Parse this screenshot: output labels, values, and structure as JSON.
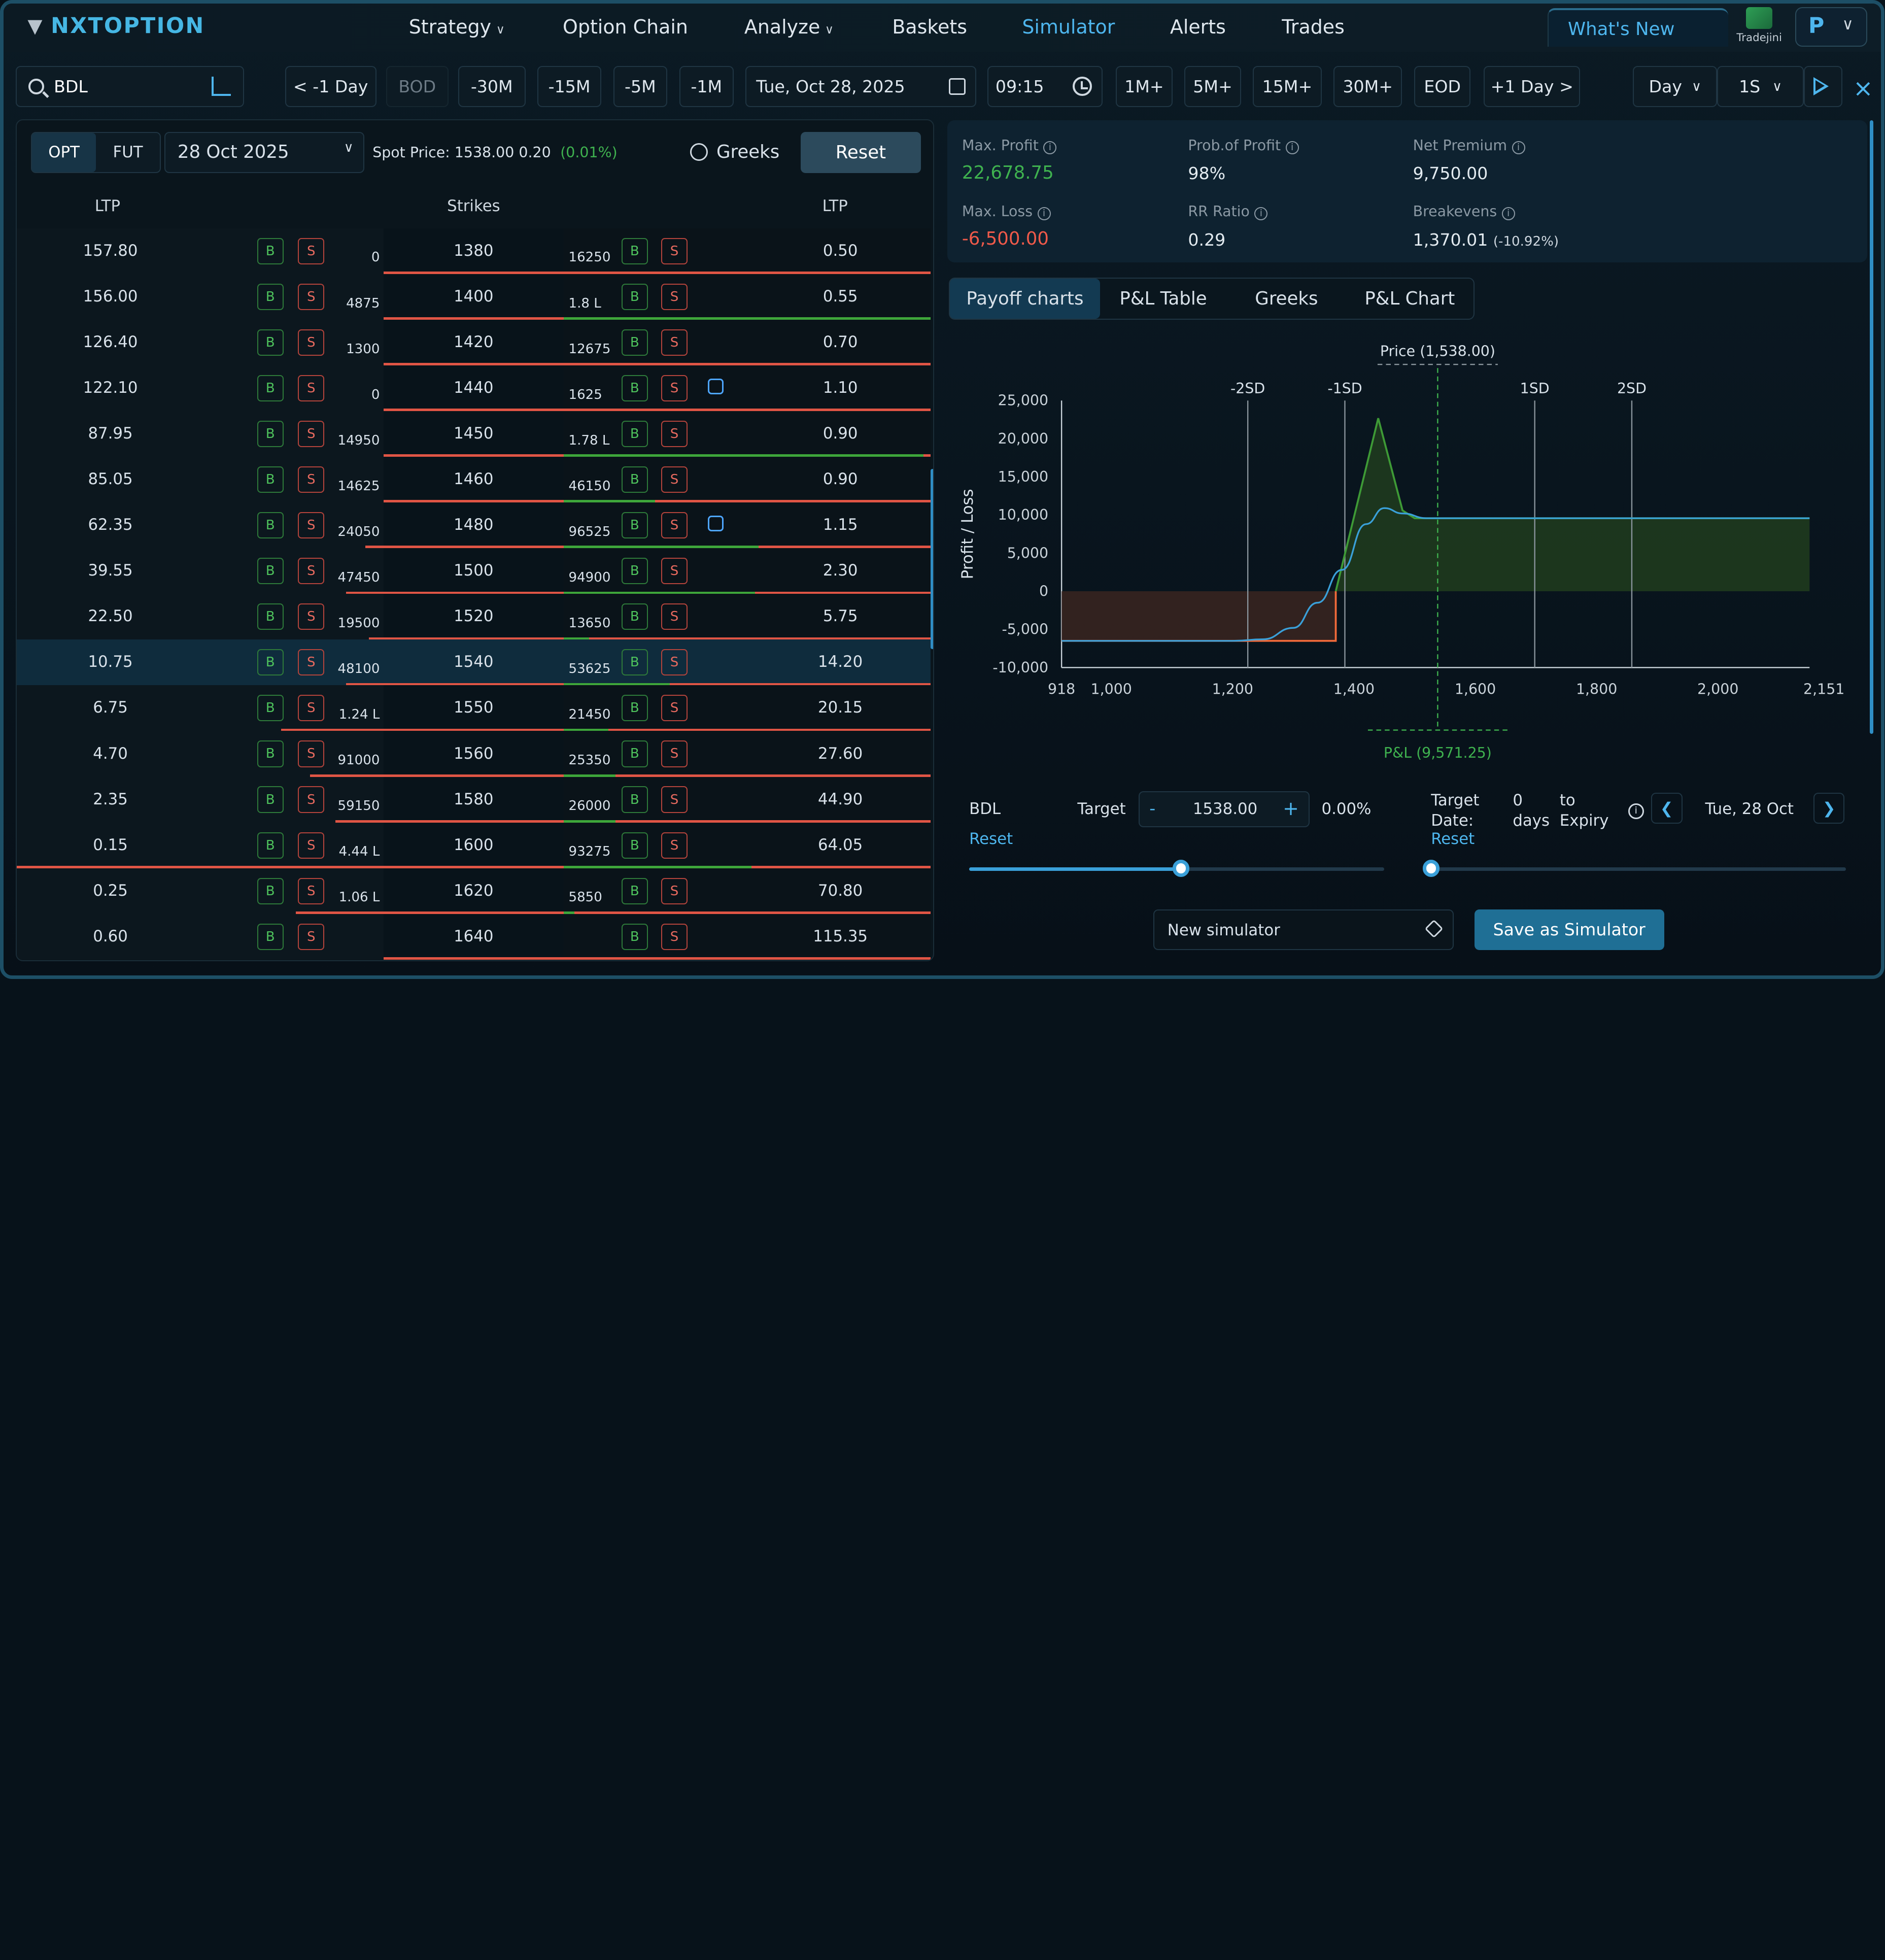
{
  "header": {
    "brand": "NXTOPTION",
    "nav": [
      {
        "label": "Strategy",
        "dropdown": true
      },
      {
        "label": "Option Chain",
        "dropdown": false
      },
      {
        "label": "Analyze",
        "dropdown": true
      },
      {
        "label": "Baskets",
        "dropdown": false
      },
      {
        "label": "Simulator",
        "dropdown": false,
        "active": true
      },
      {
        "label": "Alerts",
        "dropdown": false
      },
      {
        "label": "Trades",
        "dropdown": false
      }
    ],
    "whats_new": "What's New",
    "broker": "Tradejini",
    "profile_initial": "P"
  },
  "toolbar": {
    "symbol": "BDL",
    "back_day": "< -1 Day",
    "bod": "BOD",
    "m30": "-30M",
    "m15": "-15M",
    "m5": "-5M",
    "m1": "-1M",
    "date": "Tue, Oct 28, 2025",
    "time": "09:15",
    "p1": "1M+",
    "p5": "5M+",
    "p15": "15M+",
    "p30": "30M+",
    "eod": "EOD",
    "fwd_day": "+1 Day >",
    "interval": "Day",
    "speed": "1S"
  },
  "chain": {
    "opt": "OPT",
    "fut": "FUT",
    "expiry": "28 Oct 2025",
    "spot_label": "Spot Price: 1538.00",
    "spot_change": "0.20",
    "spot_pct": "(0.01%)",
    "greeks": "Greeks",
    "reset": "Reset",
    "col_ltp_left": "LTP",
    "col_strikes": "Strikes",
    "col_ltp_right": "LTP",
    "rows": [
      {
        "ce_ltp": "157.80",
        "ce_oi": "0",
        "strike": "1380",
        "pe_oi": "16250",
        "pe_ltp": "0.50",
        "ce_bar": 0,
        "pe_bar": 0
      },
      {
        "ce_ltp": "156.00",
        "ce_oi": "4875",
        "strike": "1400",
        "pe_oi": "1.8 L",
        "pe_ltp": "0.55",
        "ce_bar": 0,
        "pe_bar": 1.0
      },
      {
        "ce_ltp": "126.40",
        "ce_oi": "1300",
        "strike": "1420",
        "pe_oi": "12675",
        "pe_ltp": "0.70",
        "ce_bar": 0,
        "pe_bar": 0
      },
      {
        "ce_ltp": "122.10",
        "ce_oi": "0",
        "strike": "1440",
        "pe_oi": "1625",
        "pe_ltp": "1.10",
        "ce_bar": 0,
        "pe_bar": 0,
        "bag": true
      },
      {
        "ce_ltp": "87.95",
        "ce_oi": "14950",
        "strike": "1450",
        "pe_oi": "1.78 L",
        "pe_ltp": "0.90",
        "ce_bar": 0,
        "pe_bar": 0.98
      },
      {
        "ce_ltp": "85.05",
        "ce_oi": "14625",
        "strike": "1460",
        "pe_oi": "46150",
        "pe_ltp": "0.90",
        "ce_bar": 0,
        "pe_bar": 0.25
      },
      {
        "ce_ltp": "62.35",
        "ce_oi": "24050",
        "strike": "1480",
        "pe_oi": "96525",
        "pe_ltp": "1.15",
        "ce_bar": 0.05,
        "pe_bar": 0.53,
        "bag": true
      },
      {
        "ce_ltp": "39.55",
        "ce_oi": "47450",
        "strike": "1500",
        "pe_oi": "94900",
        "pe_ltp": "2.30",
        "ce_bar": 0.1,
        "pe_bar": 0.52
      },
      {
        "ce_ltp": "22.50",
        "ce_oi": "19500",
        "strike": "1520",
        "pe_oi": "13650",
        "pe_ltp": "5.75",
        "ce_bar": 0.04,
        "pe_bar": 0.07
      },
      {
        "ce_ltp": "10.75",
        "ce_oi": "48100",
        "strike": "1540",
        "pe_oi": "53625",
        "pe_ltp": "14.20",
        "ce_bar": 0.1,
        "pe_bar": 0.29,
        "highlight": true
      },
      {
        "ce_ltp": "6.75",
        "ce_oi": "1.24 L",
        "strike": "1550",
        "pe_oi": "21450",
        "pe_ltp": "20.15",
        "ce_bar": 0.28,
        "pe_bar": 0.12
      },
      {
        "ce_ltp": "4.70",
        "ce_oi": "91000",
        "strike": "1560",
        "pe_oi": "25350",
        "pe_ltp": "27.60",
        "ce_bar": 0.2,
        "pe_bar": 0.14
      },
      {
        "ce_ltp": "2.35",
        "ce_oi": "59150",
        "strike": "1580",
        "pe_oi": "26000",
        "pe_ltp": "44.90",
        "ce_bar": 0.13,
        "pe_bar": 0.14
      },
      {
        "ce_ltp": "0.15",
        "ce_oi": "4.44 L",
        "strike": "1600",
        "pe_oi": "93275",
        "pe_ltp": "64.05",
        "ce_bar": 1.0,
        "pe_bar": 0.51
      },
      {
        "ce_ltp": "0.25",
        "ce_oi": "1.06 L",
        "strike": "1620",
        "pe_oi": "5850",
        "pe_ltp": "70.80",
        "ce_bar": 0.24,
        "pe_bar": 0.03
      },
      {
        "ce_ltp": "0.60",
        "ce_oi": "",
        "strike": "1640",
        "pe_oi": "",
        "pe_ltp": "115.35",
        "ce_bar": 0,
        "pe_bar": 0
      }
    ]
  },
  "summary": {
    "max_profit_label": "Max. Profit",
    "max_profit": "22,678.75",
    "pop_label": "Prob.of Profit",
    "pop": "98%",
    "net_premium_label": "Net Premium",
    "net_premium": "9,750.00",
    "max_loss_label": "Max. Loss",
    "max_loss": "-6,500.00",
    "rr_label": "RR Ratio",
    "rr": "0.29",
    "breakevens_label": "Breakevens",
    "breakevens": "1,370.01",
    "breakevens_pct": "(-10.92%)"
  },
  "tabs": [
    "Payoff charts",
    "P&L Table",
    "Greeks",
    "P&L Chart"
  ],
  "chart_data": {
    "type": "line",
    "ylabel": "Profit / Loss",
    "x_ticks": [
      "918",
      "1,000",
      "1,200",
      "1,400",
      "1,600",
      "1,800",
      "2,000",
      "2,151"
    ],
    "x_tick_values": [
      918,
      1000,
      1200,
      1400,
      1600,
      1800,
      2000,
      2151
    ],
    "y_ticks": [
      "25,000",
      "20,000",
      "15,000",
      "10,000",
      "5,000",
      "0",
      "-5,000",
      "-10,000"
    ],
    "y_tick_values": [
      25000,
      20000,
      15000,
      10000,
      5000,
      0,
      -5000,
      -10000
    ],
    "xlim": [
      918,
      2151
    ],
    "ylim": [
      -10000,
      25000
    ],
    "price_label": "Price (1,538.00)",
    "price": 1538,
    "pnl_label": "P&L (9,571.25)",
    "sd_lines": [
      {
        "label": "-2SD",
        "x": 1225
      },
      {
        "label": "-1SD",
        "x": 1385
      },
      {
        "label": "1SD",
        "x": 1698
      },
      {
        "label": "2SD",
        "x": 1858
      }
    ],
    "expiry_series": [
      [
        918,
        -6500
      ],
      [
        1370,
        -6500
      ],
      [
        1440,
        22678
      ],
      [
        1480,
        10600
      ],
      [
        1500,
        9570
      ],
      [
        2151,
        9570
      ]
    ],
    "target_series": [
      [
        918,
        -6500
      ],
      [
        1200,
        -6500
      ],
      [
        1250,
        -6300
      ],
      [
        1300,
        -4800
      ],
      [
        1340,
        -1500
      ],
      [
        1380,
        2800
      ],
      [
        1420,
        8800
      ],
      [
        1450,
        10900
      ],
      [
        1480,
        10200
      ],
      [
        1520,
        9570
      ],
      [
        2151,
        9570
      ]
    ]
  },
  "controls": {
    "symbol": "BDL",
    "reset": "Reset",
    "target_label": "Target",
    "target_minus": "-",
    "target_value": "1538.00",
    "target_plus": "+",
    "target_pct": "0.00%",
    "target_date_label": "Target Date:",
    "days": "0 days",
    "to_expiry": "to Expiry",
    "date_reset": "Reset",
    "target_date": "Tue, 28 Oct",
    "price_slider_value": 0.51,
    "date_slider_value": 0.0,
    "sim_name": "New simulator",
    "save": "Save as Simulator"
  },
  "colors": {
    "accent": "#4eb6ee",
    "profit": "#3fb24f",
    "loss": "#f05a4a",
    "target_line": "#3aa0d9"
  }
}
